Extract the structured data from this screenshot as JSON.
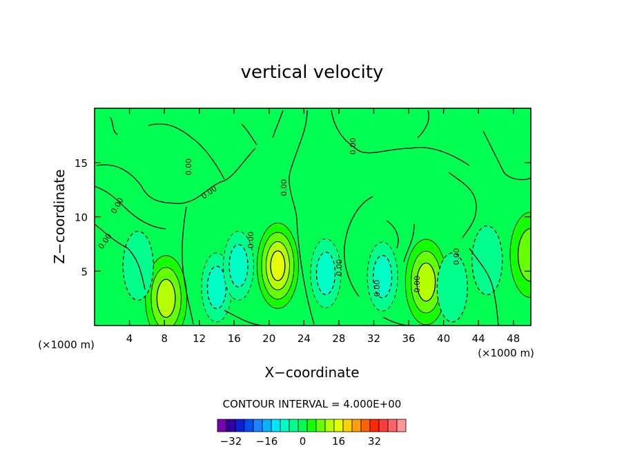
{
  "chart_data": {
    "type": "heatmap",
    "title": "vertical velocity",
    "xlabel": "X−coordinate",
    "ylabel": "Z−coordinate",
    "x_unit": "(×1000 m)",
    "x_unit_right": "(×1000 m)",
    "xlim": [
      0,
      50
    ],
    "ylim": [
      0,
      20
    ],
    "x_ticks": [
      4,
      8,
      12,
      16,
      20,
      24,
      28,
      32,
      36,
      40,
      44,
      48
    ],
    "y_ticks": [
      5,
      10,
      15
    ],
    "contour_interval_text": "CONTOUR INTERVAL = 4.000E+00",
    "contour_labels": [
      "0.00",
      "0.00",
      "0.00",
      "0.00",
      "0.00",
      "0.00",
      "0.00",
      "0.00",
      "0.00",
      "0.00",
      "0.00"
    ],
    "colorbar": {
      "colors": [
        "#7a00b4",
        "#3200a0",
        "#0a1ed2",
        "#0050f0",
        "#1e82ff",
        "#00b4ff",
        "#00e6ff",
        "#00ffc8",
        "#00ff8c",
        "#00ff50",
        "#14ff00",
        "#64ff00",
        "#b4ff00",
        "#e6ff00",
        "#ffd200",
        "#ffa000",
        "#ff6400",
        "#ff2800",
        "#ff3c3c",
        "#ff6464",
        "#ff9696"
      ],
      "tick_labels": [
        "−32",
        "−16",
        "0",
        "16",
        "32"
      ]
    },
    "features": [
      {
        "kind": "updraft",
        "x": 8.2,
        "z": 2.5,
        "max": 12
      },
      {
        "kind": "updraft",
        "x": 21.0,
        "z": 5.5,
        "max": 16
      },
      {
        "kind": "updraft",
        "x": 38.0,
        "z": 4.0,
        "max": 12
      },
      {
        "kind": "updraft",
        "x": 50.0,
        "z": 6.5,
        "max": 8
      },
      {
        "kind": "downdraft",
        "x": 14.0,
        "z": 3.5,
        "min": -8
      },
      {
        "kind": "downdraft",
        "x": 16.5,
        "z": 5.5,
        "min": -8
      },
      {
        "kind": "downdraft",
        "x": 26.5,
        "z": 4.8,
        "min": -8
      },
      {
        "kind": "downdraft",
        "x": 33.0,
        "z": 4.5,
        "min": -8
      },
      {
        "kind": "downdraft",
        "x": 41.0,
        "z": 3.5,
        "min": -4
      },
      {
        "kind": "downdraft",
        "x": 5.0,
        "z": 5.5,
        "min": -4
      },
      {
        "kind": "downdraft",
        "x": 45.0,
        "z": 6.0,
        "min": -4
      }
    ]
  }
}
